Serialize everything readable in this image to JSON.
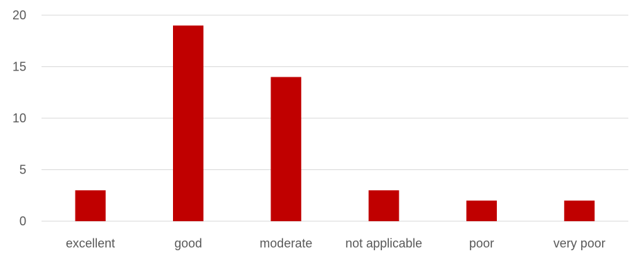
{
  "chart_data": {
    "type": "bar",
    "categories": [
      "excellent",
      "good",
      "moderate",
      "not applicable",
      "poor",
      "very poor"
    ],
    "values": [
      3,
      19,
      14,
      3,
      2,
      2
    ],
    "ylim": [
      0,
      20
    ],
    "yticks": [
      0,
      5,
      10,
      15,
      20
    ],
    "grid": true,
    "legend": "none",
    "bar_color": "#C00000",
    "grid_color": "#D9D9D9",
    "text_color": "#595959"
  }
}
